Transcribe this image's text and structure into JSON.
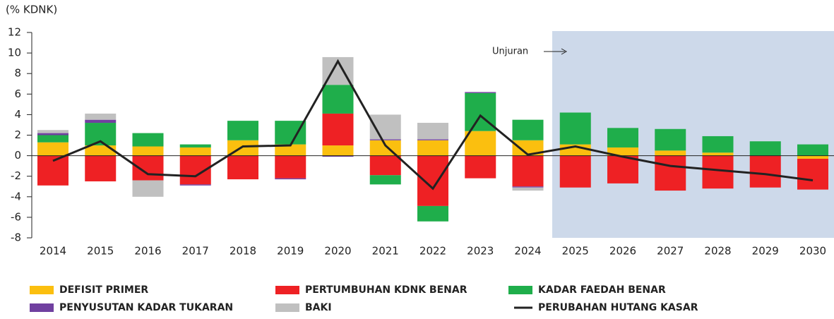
{
  "chart_data": {
    "type": "bar",
    "stacked": true,
    "y_label": "(% KDNK)",
    "annotation": "Unjuran",
    "categories": [
      "2014",
      "2015",
      "2016",
      "2017",
      "2018",
      "2019",
      "2020",
      "2021",
      "2022",
      "2023",
      "2024",
      "2025",
      "2026",
      "2027",
      "2028",
      "2029",
      "2030"
    ],
    "series": [
      {
        "name": "DEFISIT PRIMER",
        "color": "#fbbf0f",
        "values": [
          1.3,
          1.0,
          0.9,
          0.8,
          1.5,
          1.1,
          1.0,
          1.5,
          1.5,
          2.4,
          1.5,
          1.1,
          0.8,
          0.5,
          0.3,
          0,
          -0.3
        ]
      },
      {
        "name": "PERTUMBUHAN KDNK BENAR",
        "color": "#ee2124",
        "values": [
          -2.9,
          -2.5,
          -2.4,
          -2.8,
          -2.3,
          -2.2,
          3.1,
          -1.9,
          -4.9,
          -2.2,
          -3.0,
          -3.1,
          -2.7,
          -3.4,
          -3.2,
          -3.1,
          -3.0
        ]
      },
      {
        "name": "KADAR FAEDAH BENAR",
        "color": "#1fae4b",
        "values": [
          0.7,
          2.2,
          1.3,
          0.3,
          1.9,
          2.3,
          2.8,
          -0.9,
          -1.5,
          3.7,
          2.0,
          3.1,
          1.9,
          2.1,
          1.6,
          1.4,
          1.1
        ]
      },
      {
        "name": "PENYUSUTAN KADAR TUKARAN",
        "color": "#7040a0",
        "values": [
          0.2,
          0.3,
          0,
          -0.1,
          0,
          -0.1,
          -0.1,
          0.1,
          0.1,
          0.1,
          -0.1,
          0,
          0,
          0,
          0,
          0,
          0
        ]
      },
      {
        "name": "BAKI",
        "color": "#c0c0c0",
        "values": [
          0.3,
          0.6,
          -1.6,
          0,
          0,
          0,
          2.7,
          2.4,
          1.6,
          0,
          -0.3,
          0,
          0,
          0,
          0,
          0,
          0
        ]
      },
      {
        "name": "PERUBAHAN HUTANG KASAR",
        "color": "#222222",
        "type": "line",
        "values": [
          -0.5,
          1.4,
          -1.8,
          -2.0,
          0.9,
          1.0,
          9.2,
          1.0,
          -3.2,
          3.9,
          0.1,
          0.9,
          -0.1,
          -1.0,
          -1.4,
          -1.8,
          -2.4
        ]
      }
    ],
    "ylim": [
      -8,
      12
    ],
    "yticks": [
      -8,
      -6,
      -4,
      -2,
      0,
      2,
      4,
      6,
      8,
      10,
      12
    ]
  }
}
